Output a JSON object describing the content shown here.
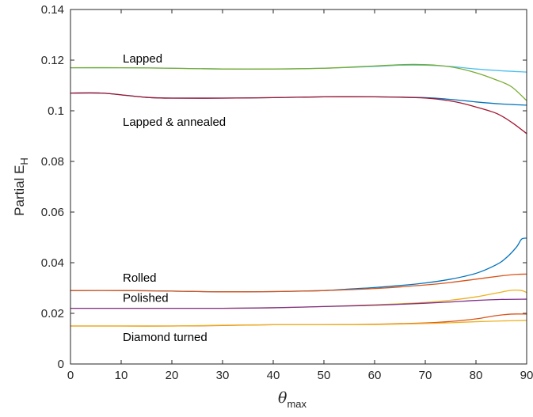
{
  "chart_data": {
    "type": "line",
    "xlabel": {
      "main": "θ",
      "subscript": "max"
    },
    "ylabel": {
      "main": "Partial E",
      "subscript": "H"
    },
    "xlim": [
      0,
      90
    ],
    "ylim": [
      0,
      0.14
    ],
    "xticks": [
      0,
      10,
      20,
      30,
      40,
      50,
      60,
      70,
      80,
      90
    ],
    "xtick_labels": [
      "0",
      "10",
      "20",
      "30",
      "40",
      "50",
      "60",
      "70",
      "80",
      "90"
    ],
    "yticks": [
      0,
      0.02,
      0.04,
      0.06,
      0.08,
      0.1,
      0.12,
      0.14
    ],
    "ytick_labels": [
      "0",
      "0.02",
      "0.04",
      "0.06",
      "0.08",
      "0.1",
      "0.12",
      "0.14"
    ],
    "grid": false,
    "box": true,
    "annotations": [
      {
        "text": "Lapped",
        "x": 10,
        "y": 0.119
      },
      {
        "text": "Lapped & annealed",
        "x": 10,
        "y": 0.094
      },
      {
        "text": "Rolled",
        "x": 10,
        "y": 0.0325
      },
      {
        "text": "Polished",
        "x": 10,
        "y": 0.0245
      },
      {
        "text": "Diamond turned",
        "x": 10,
        "y": 0.009
      }
    ],
    "series": [
      {
        "color": "#4DBEEE",
        "x": [
          0,
          10,
          20,
          30,
          40,
          50,
          60,
          65,
          70,
          75,
          80,
          85,
          90
        ],
        "y": [
          0.117,
          0.117,
          0.1168,
          0.1165,
          0.1165,
          0.1168,
          0.1175,
          0.118,
          0.118,
          0.1175,
          0.1165,
          0.1158,
          0.1153
        ]
      },
      {
        "color": "#77AC30",
        "x": [
          0,
          10,
          20,
          30,
          40,
          50,
          60,
          65,
          68,
          72,
          76,
          80,
          84,
          87,
          90
        ],
        "y": [
          0.117,
          0.117,
          0.1168,
          0.1165,
          0.1165,
          0.1168,
          0.1177,
          0.1182,
          0.1183,
          0.118,
          0.117,
          0.115,
          0.1122,
          0.1095,
          0.104
        ]
      },
      {
        "color": "#0072BD",
        "x": [
          0,
          6,
          10,
          15,
          20,
          30,
          40,
          50,
          60,
          70,
          75,
          80,
          85,
          90
        ],
        "y": [
          0.107,
          0.107,
          0.1063,
          0.1053,
          0.105,
          0.105,
          0.1052,
          0.1055,
          0.1055,
          0.1052,
          0.1045,
          0.1035,
          0.1027,
          0.1022
        ]
      },
      {
        "color": "#A2142F",
        "x": [
          0,
          6,
          10,
          15,
          20,
          30,
          40,
          50,
          60,
          68,
          72,
          76,
          80,
          84,
          87,
          90
        ],
        "y": [
          0.107,
          0.107,
          0.1063,
          0.1053,
          0.105,
          0.105,
          0.1052,
          0.1055,
          0.1055,
          0.1052,
          0.1047,
          0.1035,
          0.1015,
          0.099,
          0.0955,
          0.091
        ]
      },
      {
        "color": "#0072BD",
        "x": [
          0,
          10,
          20,
          30,
          40,
          50,
          55,
          60,
          65,
          70,
          75,
          80,
          84,
          86,
          88,
          89,
          90
        ],
        "y": [
          0.029,
          0.029,
          0.0288,
          0.0285,
          0.0286,
          0.029,
          0.0296,
          0.0302,
          0.031,
          0.032,
          0.0335,
          0.0358,
          0.0392,
          0.042,
          0.0462,
          0.0493,
          0.0497
        ]
      },
      {
        "color": "#D95319",
        "x": [
          0,
          10,
          20,
          30,
          40,
          50,
          60,
          70,
          75,
          80,
          85,
          88,
          90
        ],
        "y": [
          0.029,
          0.029,
          0.0288,
          0.0285,
          0.0286,
          0.029,
          0.0298,
          0.0312,
          0.0322,
          0.0335,
          0.0348,
          0.0354,
          0.0355
        ]
      },
      {
        "color": "#EDB120",
        "x": [
          0,
          10,
          20,
          30,
          40,
          50,
          60,
          70,
          75,
          80,
          84,
          87,
          89,
          90
        ],
        "y": [
          0.022,
          0.022,
          0.022,
          0.022,
          0.0222,
          0.0227,
          0.0234,
          0.0243,
          0.0252,
          0.0265,
          0.028,
          0.0291,
          0.029,
          0.0282
        ]
      },
      {
        "color": "#7E2F8E",
        "x": [
          0,
          10,
          20,
          30,
          40,
          50,
          60,
          70,
          75,
          80,
          85,
          90
        ],
        "y": [
          0.022,
          0.022,
          0.022,
          0.022,
          0.0222,
          0.0227,
          0.0232,
          0.024,
          0.0245,
          0.0251,
          0.0255,
          0.0256
        ]
      },
      {
        "color": "#D95319",
        "x": [
          0,
          10,
          20,
          30,
          40,
          50,
          60,
          70,
          75,
          80,
          84,
          87,
          90
        ],
        "y": [
          0.015,
          0.015,
          0.015,
          0.0152,
          0.0155,
          0.0155,
          0.0157,
          0.0162,
          0.0168,
          0.0178,
          0.0191,
          0.0197,
          0.0197
        ]
      },
      {
        "color": "#EDB120",
        "x": [
          0,
          10,
          20,
          30,
          40,
          50,
          60,
          70,
          75,
          80,
          85,
          90
        ],
        "y": [
          0.015,
          0.015,
          0.015,
          0.0153,
          0.0155,
          0.0155,
          0.0156,
          0.016,
          0.0163,
          0.0167,
          0.017,
          0.0172
        ]
      }
    ]
  }
}
